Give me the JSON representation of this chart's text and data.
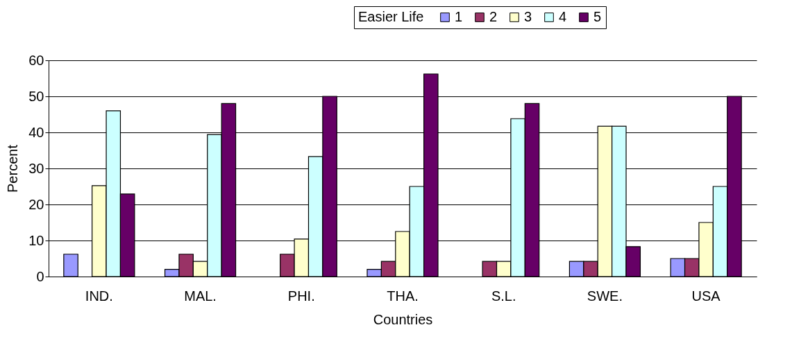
{
  "chart_data": {
    "type": "bar",
    "xlabel": "Countries",
    "ylabel": "Percent",
    "legend_title": "Easier Life",
    "legend": "top",
    "grid": "y",
    "categories": [
      "IND.",
      "MAL.",
      "PHI.",
      "THA.",
      "S.L.",
      "SWE.",
      "USA"
    ],
    "ylim": [
      0,
      60
    ],
    "yticks": [
      0,
      10,
      20,
      30,
      40,
      50,
      60
    ],
    "series": [
      {
        "name": "1",
        "color": "#9999ff",
        "values": [
          6.2,
          2,
          null,
          2,
          null,
          4.2,
          5
        ]
      },
      {
        "name": "2",
        "color": "#993366",
        "values": [
          null,
          6.2,
          6.2,
          4.2,
          4.2,
          4.2,
          5
        ]
      },
      {
        "name": "3",
        "color": "#ffffcc",
        "values": [
          25.2,
          4.2,
          10.4,
          12.5,
          4.2,
          41.7,
          15
        ]
      },
      {
        "name": "4",
        "color": "#ccffff",
        "values": [
          46,
          39.4,
          33.3,
          25,
          43.8,
          41.7,
          25
        ]
      },
      {
        "name": "5",
        "color": "#660066",
        "values": [
          22.9,
          48,
          50,
          56.2,
          48,
          8.3,
          50
        ]
      }
    ]
  }
}
